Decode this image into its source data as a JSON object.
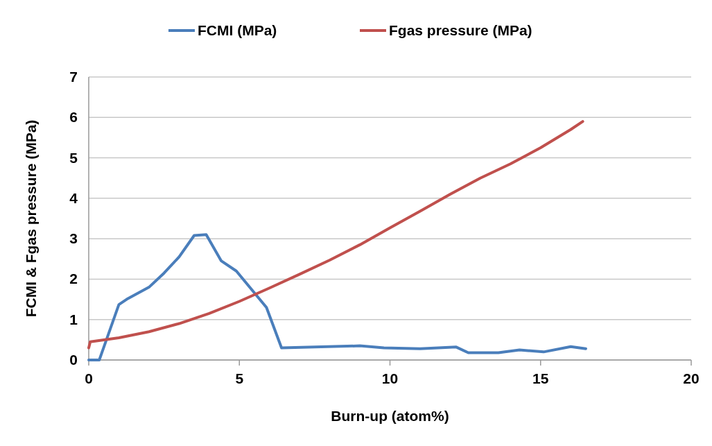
{
  "chart_data": {
    "type": "line",
    "xlabel": "Burn-up (atom%)",
    "ylabel": "FCMI & Fgas pressure (MPa)",
    "xlim": [
      0,
      20
    ],
    "xticks": [
      0,
      5,
      10,
      15,
      20
    ],
    "ylim": [
      0,
      7
    ],
    "yticks": [
      0,
      1,
      2,
      3,
      4,
      5,
      6,
      7
    ],
    "grid": "y",
    "legend": "top",
    "marker": "none",
    "line_style": "solid",
    "series": [
      {
        "name": "FCMI (MPa)",
        "color": "#4a7ebb",
        "x": [
          0,
          0.35,
          1.0,
          1.3,
          2,
          2.5,
          3,
          3.5,
          3.9,
          4.4,
          4.9,
          5.9,
          6.4,
          7.5,
          9,
          9.8,
          11,
          12.2,
          12.6,
          13.6,
          14.3,
          15.1,
          16,
          16.5
        ],
        "values": [
          0,
          0,
          1.37,
          1.52,
          1.8,
          2.15,
          2.55,
          3.08,
          3.1,
          2.45,
          2.2,
          1.3,
          0.3,
          0.32,
          0.35,
          0.3,
          0.28,
          0.32,
          0.18,
          0.18,
          0.25,
          0.2,
          0.33,
          0.28
        ]
      },
      {
        "name": "Fgas pressure (MPa)",
        "color": "#c0504d",
        "x": [
          0,
          0.05,
          1,
          2,
          3,
          4,
          5,
          6,
          7,
          8,
          9,
          10,
          11,
          12,
          13,
          14,
          15,
          16,
          16.4
        ],
        "values": [
          0.3,
          0.45,
          0.55,
          0.7,
          0.9,
          1.15,
          1.45,
          1.78,
          2.12,
          2.47,
          2.85,
          3.27,
          3.68,
          4.1,
          4.5,
          4.85,
          5.25,
          5.7,
          5.9
        ]
      }
    ]
  }
}
